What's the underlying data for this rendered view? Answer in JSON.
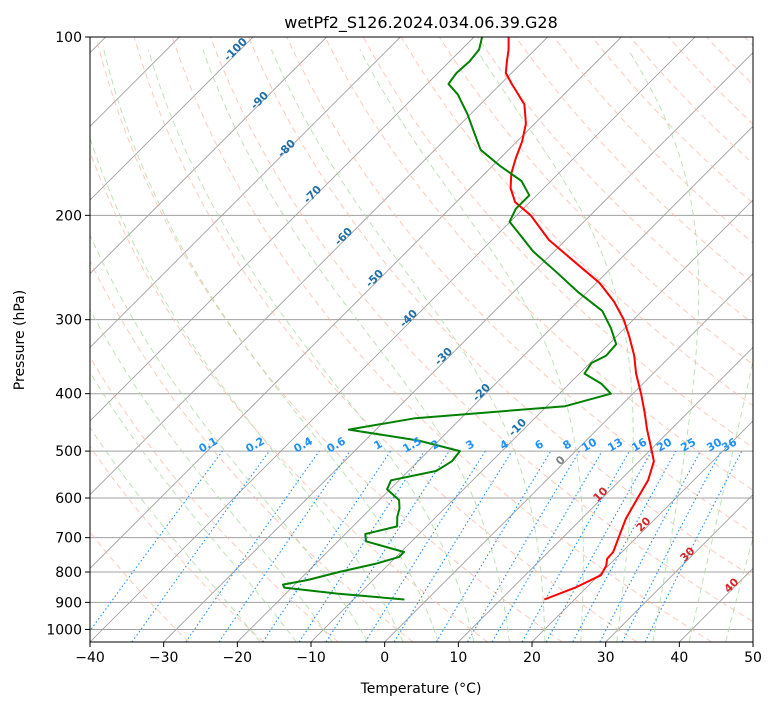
{
  "chart_data": {
    "type": "line",
    "title": "wetPf2_S126.2024.034.06.39.G28",
    "xlabel": "Temperature (°C)",
    "ylabel": "Pressure (hPa)",
    "xlim": [
      -40,
      50
    ],
    "ylim": [
      1050,
      100
    ],
    "yscale": "log",
    "grid": true,
    "x_ticks": [
      "−40",
      "−30",
      "−20",
      "−10",
      "0",
      "10",
      "20",
      "30",
      "40",
      "50"
    ],
    "x_tick_values": [
      -40,
      -30,
      -20,
      -10,
      0,
      10,
      20,
      30,
      40,
      50
    ],
    "y_ticks": [
      "100",
      "200",
      "300",
      "400",
      "500",
      "600",
      "700",
      "800",
      "900",
      "1000"
    ],
    "y_tick_values": [
      100,
      200,
      300,
      400,
      500,
      600,
      700,
      800,
      900,
      1000
    ],
    "skew_deg": 45,
    "series": [
      {
        "role": "temperature",
        "color": "#ff0000",
        "points": [
          [
            15.9,
            890
          ],
          [
            18.5,
            850
          ],
          [
            20.3,
            810
          ],
          [
            19.7,
            780
          ],
          [
            18.9,
            760
          ],
          [
            18.8,
            740
          ],
          [
            17.6,
            700
          ],
          [
            16.0,
            650
          ],
          [
            14.8,
            600
          ],
          [
            13.8,
            560
          ],
          [
            12.0,
            520
          ],
          [
            9.5,
            490
          ],
          [
            6.8,
            460
          ],
          [
            4.1,
            430
          ],
          [
            1.1,
            400
          ],
          [
            -2.3,
            370
          ],
          [
            -5.0,
            345
          ],
          [
            -8.3,
            320
          ],
          [
            -11.3,
            300
          ],
          [
            -15.0,
            280
          ],
          [
            -19.6,
            260
          ],
          [
            -25.7,
            240
          ],
          [
            -32.3,
            220
          ],
          [
            -38.1,
            200
          ],
          [
            -42.0,
            190
          ],
          [
            -44.5,
            180
          ],
          [
            -46.4,
            170
          ],
          [
            -47.9,
            160
          ],
          [
            -49.3,
            150
          ],
          [
            -51.2,
            140
          ],
          [
            -54.0,
            130
          ],
          [
            -58.5,
            120
          ],
          [
            -60.8,
            115
          ],
          [
            -62.2,
            110
          ],
          [
            -63.6,
            105
          ],
          [
            -65.3,
            100
          ]
        ]
      },
      {
        "role": "dewpoint",
        "color": "#008000",
        "points": [
          [
            -3.1,
            890
          ],
          [
            -13.0,
            870
          ],
          [
            -21.0,
            850
          ],
          [
            -21.6,
            840
          ],
          [
            -18.8,
            825
          ],
          [
            -15.7,
            800
          ],
          [
            -11.9,
            775
          ],
          [
            -9.6,
            755
          ],
          [
            -9.6,
            740
          ],
          [
            -16.2,
            710
          ],
          [
            -17.3,
            690
          ],
          [
            -14.0,
            670
          ],
          [
            -15.3,
            645
          ],
          [
            -16.1,
            625
          ],
          [
            -17.3,
            605
          ],
          [
            -20.4,
            580
          ],
          [
            -21.1,
            560
          ],
          [
            -16.2,
            540
          ],
          [
            -15.4,
            520
          ],
          [
            -15.7,
            500
          ],
          [
            -22.7,
            480
          ],
          [
            -33.7,
            460
          ],
          [
            -26.2,
            440
          ],
          [
            -7.5,
            420
          ],
          [
            -3.0,
            400
          ],
          [
            -5.6,
            385
          ],
          [
            -9.3,
            370
          ],
          [
            -9.8,
            355
          ],
          [
            -8.8,
            345
          ],
          [
            -9.0,
            330
          ],
          [
            -11.9,
            310
          ],
          [
            -15.4,
            290
          ],
          [
            -21.1,
            270
          ],
          [
            -26.7,
            250
          ],
          [
            -32.9,
            230
          ],
          [
            -37.1,
            215
          ],
          [
            -40.1,
            205
          ],
          [
            -41.0,
            195
          ],
          [
            -41.0,
            185
          ],
          [
            -44.0,
            175
          ],
          [
            -49.0,
            165
          ],
          [
            -53.8,
            155
          ],
          [
            -57.0,
            145
          ],
          [
            -60.4,
            135
          ],
          [
            -64.4,
            125
          ],
          [
            -67.1,
            120
          ],
          [
            -67.5,
            115
          ],
          [
            -67.3,
            110
          ],
          [
            -67.6,
            105
          ],
          [
            -68.9,
            100
          ]
        ]
      }
    ],
    "dry_adiabat_labels": [
      "-100",
      "-90",
      "-80",
      "-70",
      "-60",
      "-50",
      "-40",
      "-30",
      "-20",
      "-10"
    ],
    "moist_adiabat_labels": [
      "0",
      "10",
      "20",
      "30",
      "40"
    ],
    "mixing_ratio_labels": [
      "0.1",
      "0.2",
      "0.4",
      "0.6",
      "1",
      "1.5",
      "2",
      "3",
      "4",
      "6",
      "8",
      "10",
      "13",
      "16",
      "20",
      "25",
      "30",
      "36"
    ],
    "colors": {
      "temperature": "#ff0000",
      "dewpoint": "#008000",
      "isotherm": "#a0a0a0",
      "dry_adiabat": "#fab59e",
      "moist_adiabat": "#a9d8a0",
      "mixing_ratio": "#1e90ff",
      "dry_label": "#1f6fa8",
      "moist_label": "#d62728"
    }
  }
}
